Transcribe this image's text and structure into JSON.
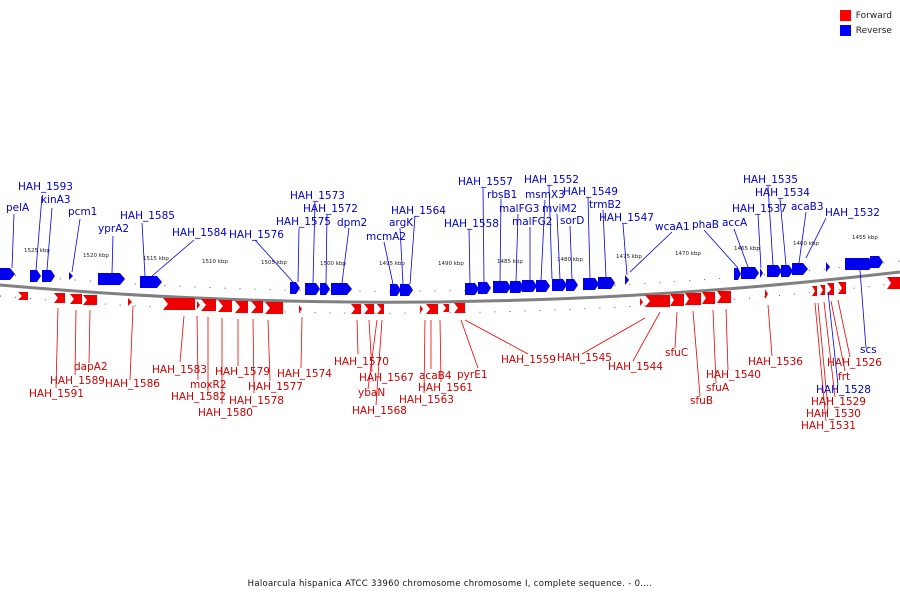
{
  "legend": {
    "forward_label": "Forward",
    "reverse_label": "Reverse",
    "forward_color": "#ff0000",
    "reverse_color": "#0000ff"
  },
  "caption": "Haloarcula hispanica ATCC 33960 chromosome chromosome I, complete sequence. - 0....",
  "scale_labels": [
    "1525 kbp",
    "1520 kbp",
    "1515 kbp",
    "1510 kbp",
    "1505 kbp",
    "1500 kbp",
    "1495 kbp",
    "1490 kbp",
    "1485 kbp",
    "1480 kbp",
    "1475 kbp",
    "1470 kbp",
    "1465 kbp",
    "1460 kbp",
    "1455 kbp"
  ],
  "reverse_labels": [
    "pelA",
    "HAH_1593",
    "kinA3",
    "pcm1",
    "yprA2",
    "HAH_1585",
    "HAH_1584",
    "HAH_1576",
    "HAH_1575",
    "HAH_1573",
    "HAH_1572",
    "dpm2",
    "mcmA2",
    "argK",
    "HAH_1564",
    "HAH_1558",
    "HAH_1557",
    "rbsB1",
    "malFG3",
    "malFG2",
    "msmX3",
    "HAH_1552",
    "mviM2",
    "sorD",
    "HAH_1549",
    "trmB2",
    "HAH_1547",
    "wcaA1",
    "phaB",
    "accA",
    "HAH_1537",
    "HAH_1535",
    "HAH_1534",
    "acaB3",
    "HAH_1532",
    "scs",
    "HAH_1528"
  ],
  "forward_labels": [
    "HAH_1591",
    "HAH_1589",
    "dapA2",
    "HAH_1586",
    "HAH_1583",
    "moxR2",
    "HAH_1582",
    "HAH_1580",
    "HAH_1579",
    "HAH_1578",
    "HAH_1577",
    "HAH_1574",
    "HAH_1570",
    "HAH_1567",
    "ybaN",
    "HAH_1568",
    "acaB4",
    "HAH_1561",
    "HAH_1563",
    "pyrE1",
    "HAH_1559",
    "HAH_1545",
    "HAH_1544",
    "sfuC",
    "sfuB",
    "sfuA",
    "HAH_1540",
    "HAH_1536",
    "HAH_1526",
    "frt",
    "HAH_1529",
    "HAH_1530",
    "HAH_1531"
  ]
}
